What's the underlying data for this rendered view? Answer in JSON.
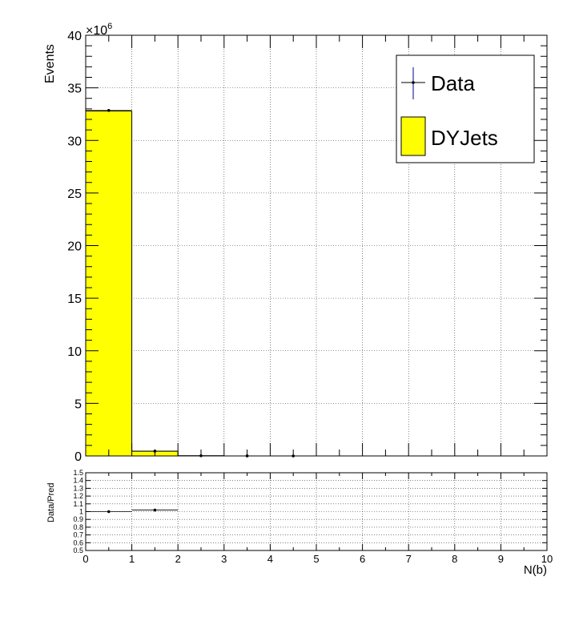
{
  "chart_data": [
    {
      "type": "bar",
      "name": "main",
      "xlabel": "",
      "ylabel": "Events",
      "y_multiplier": "×10",
      "y_multiplier_exponent": "6",
      "xlim": [
        0,
        10
      ],
      "ylim": [
        0,
        40
      ],
      "grid": true,
      "yticks": [
        0,
        5,
        10,
        15,
        20,
        25,
        30,
        35,
        40
      ],
      "ytick_labels": [
        "0",
        "5",
        "10",
        "15",
        "20",
        "25",
        "30",
        "35",
        "40"
      ],
      "bin_edges": [
        0,
        1,
        2,
        3,
        4,
        5,
        6,
        7,
        8,
        9,
        10
      ],
      "series": [
        {
          "name": "DYJets",
          "kind": "histogram",
          "color": "#ffff00",
          "values": [
            32.8,
            0.45,
            0.02,
            0.0,
            0.0,
            0.0,
            0.0,
            0.0,
            0.0,
            0.0
          ]
        },
        {
          "name": "Data",
          "kind": "points",
          "color": "#000000",
          "error_color": "#00008b",
          "x": [
            0.5,
            1.5,
            2.5,
            3.5,
            4.5
          ],
          "values": [
            32.85,
            0.46,
            0.015,
            0.002,
            0.0005
          ]
        }
      ],
      "legend": {
        "position": "top-right",
        "entries": [
          {
            "label": "Data",
            "marker": "point"
          },
          {
            "label": "DYJets",
            "marker": "box"
          }
        ]
      }
    },
    {
      "type": "scatter",
      "name": "ratio",
      "xlabel": "N(b)",
      "ylabel": "Data/Pred",
      "xlim": [
        0,
        10
      ],
      "ylim": [
        0.5,
        1.5
      ],
      "grid": true,
      "xticks": [
        0,
        1,
        2,
        3,
        4,
        5,
        6,
        7,
        8,
        9,
        10
      ],
      "xtick_labels": [
        "0",
        "1",
        "2",
        "3",
        "4",
        "5",
        "6",
        "7",
        "8",
        "9",
        "10"
      ],
      "yticks": [
        0.5,
        0.6,
        0.7,
        0.8,
        0.9,
        1,
        1.1,
        1.2,
        1.3,
        1.4,
        1.5
      ],
      "ytick_labels": [
        "0.5",
        "0.6",
        "0.7",
        "0.8",
        "0.9",
        "1",
        "1.1",
        "1.2",
        "1.3",
        "1.4",
        "1.5"
      ],
      "points": [
        {
          "x": 0.5,
          "y": 1.0,
          "xlo": 0,
          "xhi": 1
        },
        {
          "x": 1.5,
          "y": 1.02,
          "xlo": 1,
          "xhi": 2
        }
      ]
    }
  ]
}
